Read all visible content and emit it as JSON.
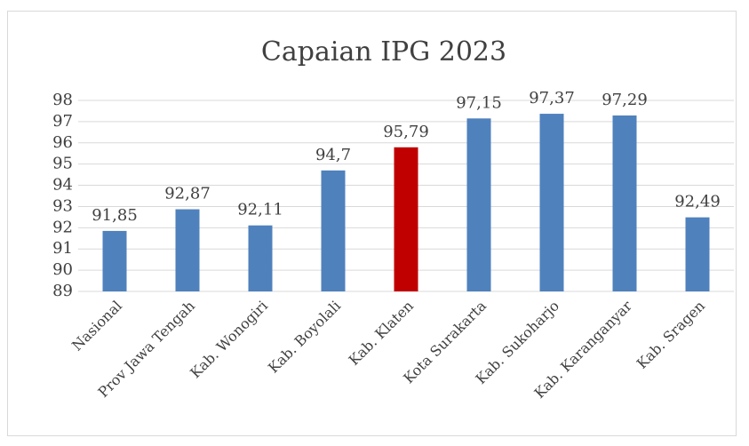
{
  "chart_data": {
    "type": "bar",
    "title": "Capaian IPG 2023",
    "categories": [
      "Nasional",
      "Prov Jawa Tengah",
      "Kab. Wonogiri",
      "Kab. Boyolali",
      "Kab. Klaten",
      "Kota Surakarta",
      "Kab. Sukoharjo",
      "Kab. Karanganyar",
      "Kab. Sragen"
    ],
    "values": [
      91.85,
      92.87,
      92.11,
      94.7,
      95.79,
      97.15,
      97.37,
      97.29,
      92.49
    ],
    "value_labels": [
      "91,85",
      "92,87",
      "92,11",
      "94,7",
      "95,79",
      "97,15",
      "97,37",
      "97,29",
      "92,49"
    ],
    "colors": [
      "#4f81bd",
      "#4f81bd",
      "#4f81bd",
      "#4f81bd",
      "#c00000",
      "#4f81bd",
      "#4f81bd",
      "#4f81bd",
      "#4f81bd"
    ],
    "ylim": [
      89,
      98
    ],
    "yticks": [
      89,
      90,
      91,
      92,
      93,
      94,
      95,
      96,
      97,
      98
    ],
    "grid": true
  }
}
